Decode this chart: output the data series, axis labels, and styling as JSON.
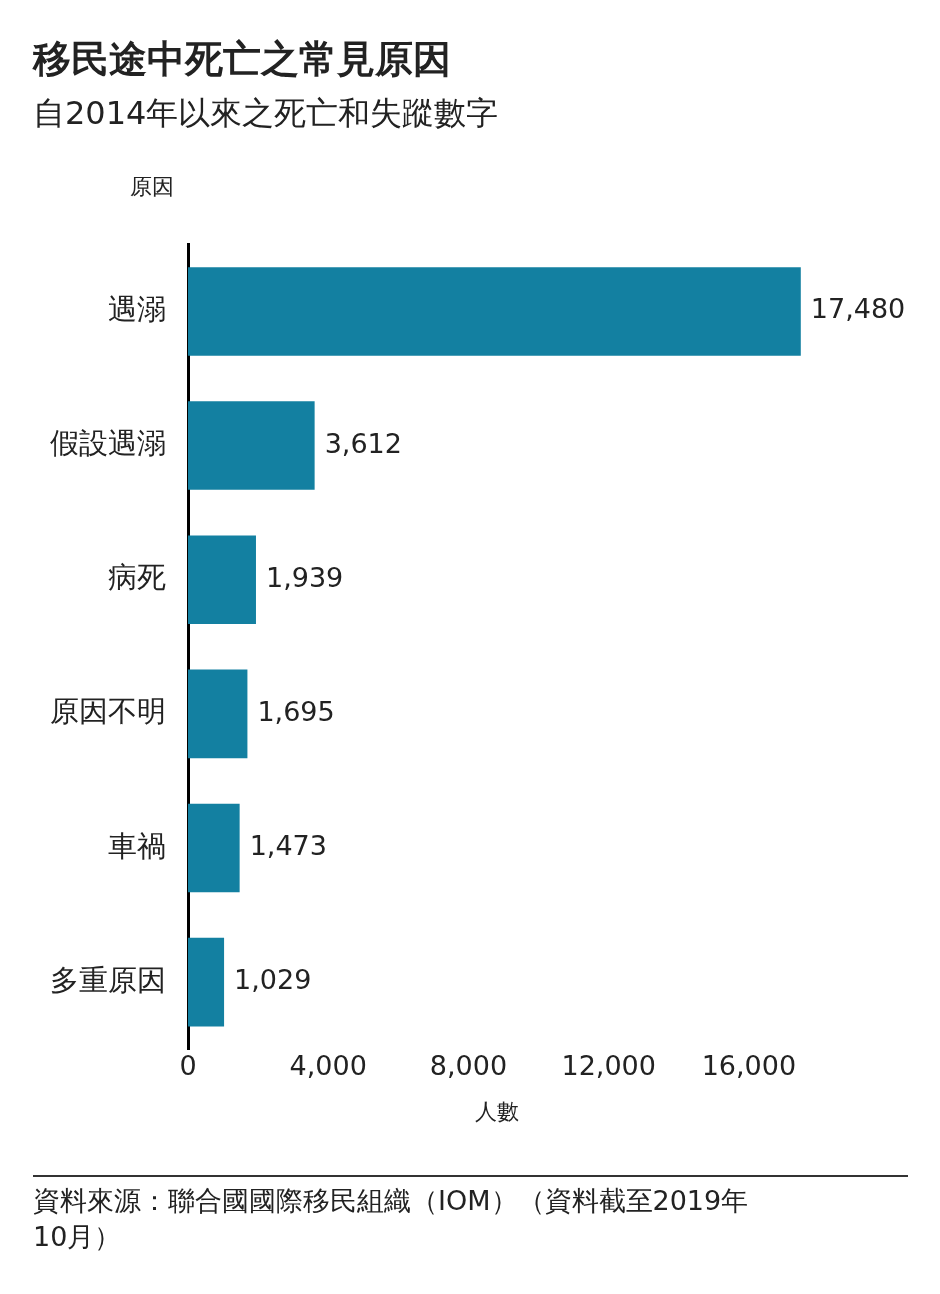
{
  "chart_data": {
    "type": "bar",
    "orientation": "horizontal",
    "title": "移民途中死亡之常見原因",
    "subtitle": "自2014年以來之死亡和失蹤數字",
    "ylabel": "原因",
    "xlabel": "人數",
    "categories": [
      "遇溺",
      "假設遇溺",
      "病死",
      "原因不明",
      "車禍",
      "多重原因"
    ],
    "values": [
      17480,
      3612,
      1939,
      1695,
      1473,
      1029
    ],
    "color": "#1380a1",
    "xlim": [
      0,
      17600
    ],
    "xticks": [
      0,
      {
        "value": 4000,
        "label": "4,000"
      },
      {
        "value": 8000,
        "label": "8,000"
      },
      {
        "value": 12000,
        "label": "12,000"
      },
      {
        "value": 16000,
        "label": "16,000"
      }
    ],
    "value_labels": [
      "17,480",
      "3,612",
      "1,939",
      "1,695",
      "1,473",
      "1,029"
    ],
    "annotations": [
      "資料來源：聯合國國際移民組織（IOM）（資料截至2019年10月）"
    ]
  }
}
